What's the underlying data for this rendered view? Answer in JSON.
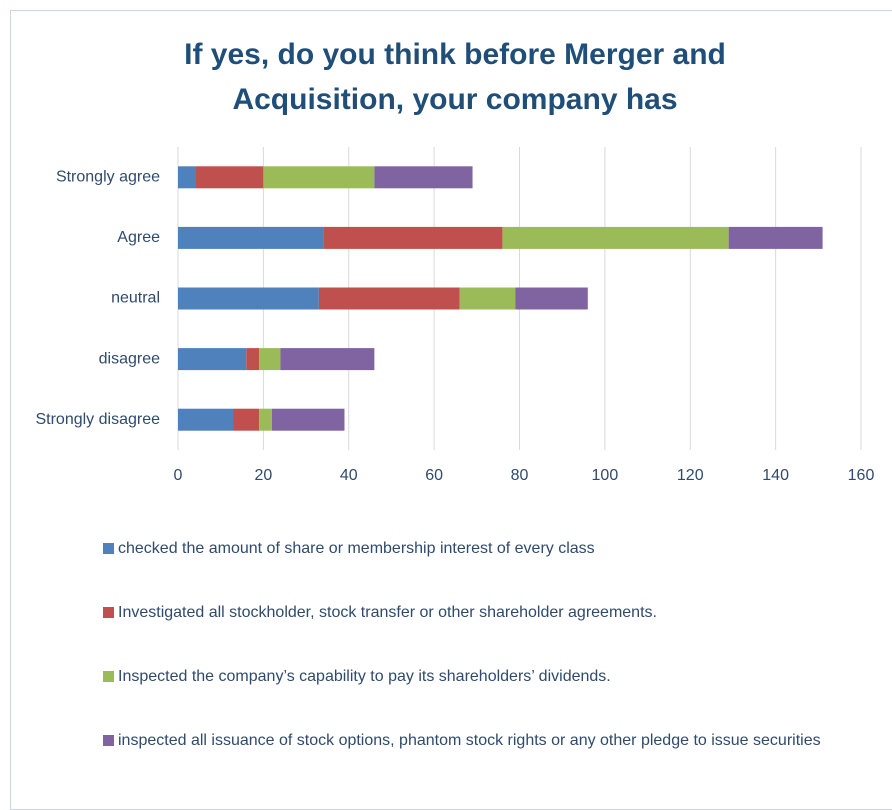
{
  "chart_data": {
    "type": "bar",
    "orientation": "horizontal",
    "stacked": true,
    "title": "If yes, do you think before Merger and Acquisition, your company has",
    "categories": [
      "Strongly agree",
      "Agree",
      "neutral",
      "disagree",
      "Strongly disagree"
    ],
    "series": [
      {
        "name": "checked the amount of share or membership interest of every class",
        "color": "#4f81bd",
        "values": [
          4,
          34,
          33,
          16,
          13
        ]
      },
      {
        "name": "Investigated all stockholder, stock transfer or other shareholder agreements.",
        "color": "#c0504d",
        "values": [
          16,
          42,
          33,
          3,
          6
        ]
      },
      {
        "name": "Inspected the company’s capability to pay its shareholders’ dividends.",
        "color": "#9bbb59",
        "values": [
          26,
          53,
          13,
          5,
          3
        ]
      },
      {
        "name": "inspected all issuance of stock options, phantom stock rights or any other pledge to issue securities",
        "color": "#8064a2",
        "values": [
          23,
          22,
          17,
          22,
          17
        ]
      }
    ],
    "xlim": [
      0,
      160
    ],
    "xticks": [
      0,
      20,
      40,
      60,
      80,
      100,
      120,
      140,
      160
    ],
    "grid": true,
    "legend": "bottom"
  }
}
